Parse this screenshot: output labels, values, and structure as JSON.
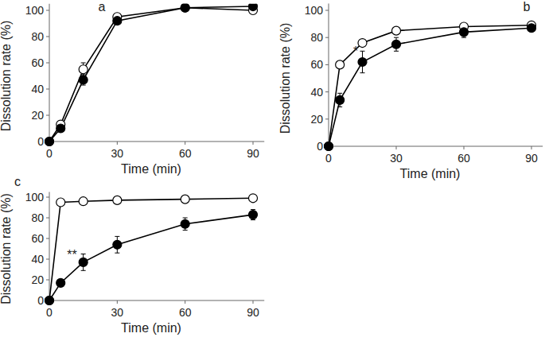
{
  "chart_data": [
    {
      "type": "line",
      "title": "a",
      "x_label": "Time (min)",
      "y_label": "Dissolution rate (%)",
      "x": [
        0,
        5,
        15,
        30,
        60,
        90
      ],
      "xlim": [
        0,
        95
      ],
      "xticks": [
        0,
        30,
        60,
        90
      ],
      "ylim": [
        0,
        105
      ],
      "yticks": [
        0,
        20,
        40,
        60,
        80,
        100
      ],
      "grid": false,
      "series": [
        {
          "color": "#000000",
          "marker": "open-circle",
          "values": [
            0,
            13,
            55,
            95,
            102,
            100
          ],
          "errors": [
            0,
            1,
            5,
            1,
            1,
            1
          ]
        },
        {
          "color": "#000000",
          "marker": "filled-circle",
          "values": [
            0,
            10,
            47,
            92,
            102,
            103
          ],
          "errors": [
            0,
            1,
            4,
            2,
            1,
            1
          ]
        }
      ]
    },
    {
      "type": "line",
      "title": "b",
      "x_label": "Time (min)",
      "y_label": "Dissolution rate (%)",
      "x": [
        0,
        5,
        15,
        30,
        60,
        90
      ],
      "xlim": [
        0,
        95
      ],
      "xticks": [
        0,
        30,
        60,
        90
      ],
      "ylim": [
        0,
        105
      ],
      "yticks": [
        0,
        20,
        40,
        60,
        80,
        100
      ],
      "grid": false,
      "series": [
        {
          "color": "#000000",
          "marker": "open-circle",
          "values": [
            0,
            60,
            76,
            85,
            88,
            89
          ],
          "errors": [
            0,
            1,
            1,
            1,
            1,
            1
          ]
        },
        {
          "color": "#000000",
          "marker": "filled-circle",
          "values": [
            0,
            34,
            62,
            75,
            84,
            87
          ],
          "errors": [
            0,
            5,
            8,
            5,
            4,
            2
          ]
        }
      ],
      "annotations": [
        {
          "text": "*",
          "x": 12,
          "y": 70
        }
      ]
    },
    {
      "type": "line",
      "title": "c",
      "x_label": "Time (min)",
      "y_label": "Dissolution rate (%)",
      "x": [
        0,
        5,
        15,
        30,
        60,
        90
      ],
      "xlim": [
        0,
        95
      ],
      "xticks": [
        0,
        30,
        60,
        90
      ],
      "ylim": [
        0,
        105
      ],
      "yticks": [
        0,
        20,
        40,
        60,
        80,
        100
      ],
      "grid": false,
      "series": [
        {
          "color": "#000000",
          "marker": "open-circle",
          "values": [
            0,
            95,
            96,
            97,
            98,
            99
          ],
          "errors": [
            0,
            1,
            1,
            1,
            1,
            1
          ]
        },
        {
          "color": "#000000",
          "marker": "filled-circle",
          "values": [
            0,
            17,
            37,
            54,
            74,
            83
          ],
          "errors": [
            0,
            3,
            8,
            8,
            6,
            5
          ]
        }
      ],
      "annotations": [
        {
          "text": "**",
          "x": 10,
          "y": 45
        }
      ]
    }
  ]
}
